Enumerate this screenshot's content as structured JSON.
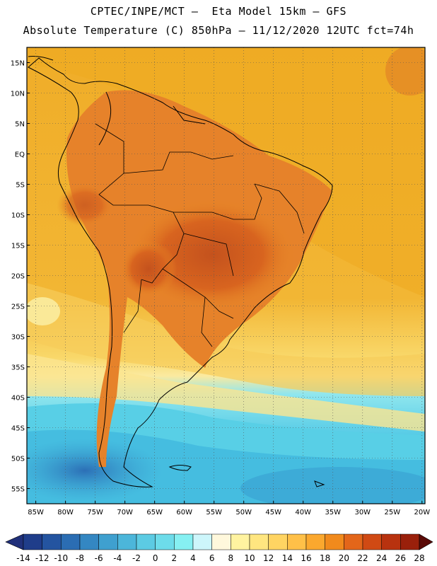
{
  "header": {
    "title_line1": "CPTEC/INPE/MCT —  Eta Model 15km — GFS",
    "title_line2": "Absolute Temperature (C) 850hPa — 11/12/2020 12UTC fct=74h"
  },
  "map": {
    "lat_labels": [
      "15N",
      "10N",
      "5N",
      "EQ",
      "5S",
      "10S",
      "15S",
      "20S",
      "25S",
      "30S",
      "35S",
      "40S",
      "45S",
      "50S",
      "55S"
    ],
    "lon_labels": [
      "85W",
      "80W",
      "75W",
      "70W",
      "65W",
      "60W",
      "55W",
      "50W",
      "45W",
      "40W",
      "35W",
      "30W",
      "25W",
      "20W"
    ],
    "grid": true
  },
  "colorbar": {
    "ticks": [
      "-14",
      "-12",
      "-10",
      "-8",
      "-6",
      "-4",
      "-2",
      "0",
      "2",
      "4",
      "6",
      "8",
      "10",
      "12",
      "14",
      "16",
      "18",
      "20",
      "22",
      "24",
      "26",
      "28"
    ],
    "colors": [
      "#1f3d8a",
      "#2454a0",
      "#2b6db3",
      "#3487c2",
      "#3fa0cf",
      "#4cb6da",
      "#5ccbe3",
      "#6ddcea",
      "#86f0f2",
      "#cdf6fb",
      "#fff8dc",
      "#fff3a0",
      "#ffe680",
      "#ffd462",
      "#ffc048",
      "#fba82e",
      "#f18a1c",
      "#e3661a",
      "#d04a14",
      "#b8320f",
      "#9a200b",
      "#7a1409",
      "#5e0d07"
    ],
    "under_color": "#20307a",
    "over_color": "#5a0a06"
  },
  "colors": {
    "ocean_warm": "#f0b32a",
    "land_hot": "#e4702a",
    "land_very_hot": "#c8501c",
    "cool_yellow": "#fbe27a",
    "cold_cyan": "#4fcfe6",
    "colder": "#3aa0d0",
    "coldest": "#2c78bd"
  }
}
